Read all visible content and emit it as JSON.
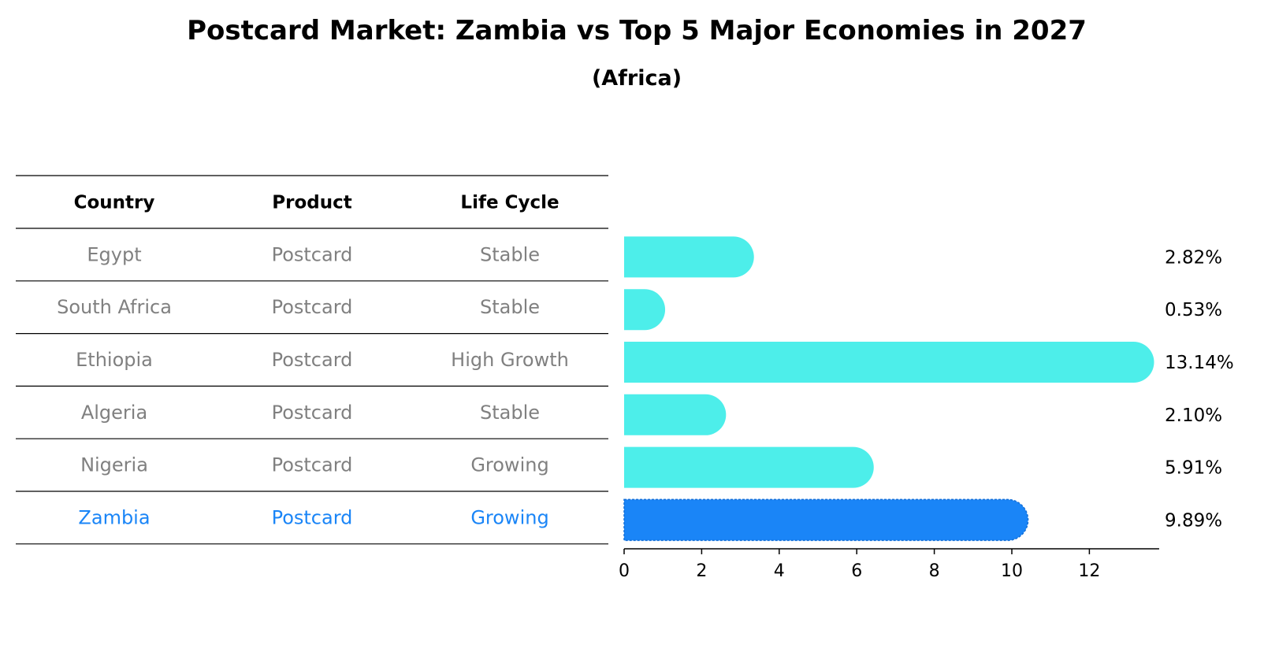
{
  "colors": {
    "bar": "#4DEEEA",
    "highlight_bar": "#1A85F7",
    "row_text": "#808080",
    "highlight_text": "#1A85F7"
  },
  "table": {
    "headers": [
      "Country",
      "Product",
      "Life Cycle"
    ],
    "rows": [
      {
        "country": "Egypt",
        "product": "Postcard",
        "life_cycle": "Stable"
      },
      {
        "country": "South Africa",
        "product": "Postcard",
        "life_cycle": "Stable"
      },
      {
        "country": "Ethiopia",
        "product": "Postcard",
        "life_cycle": "High Growth"
      },
      {
        "country": "Algeria",
        "product": "Postcard",
        "life_cycle": "Stable"
      },
      {
        "country": "Nigeria",
        "product": "Postcard",
        "life_cycle": "Growing"
      },
      {
        "country": "Zambia",
        "product": "Postcard",
        "life_cycle": "Growing"
      }
    ],
    "highlight_row": 5
  },
  "chart_data": {
    "type": "bar",
    "orientation": "horizontal",
    "title": "Postcard Market: Zambia vs Top 5 Major Economies in 2027",
    "subtitle": "(Africa)",
    "categories": [
      "Egypt",
      "South Africa",
      "Ethiopia",
      "Algeria",
      "Nigeria",
      "Zambia"
    ],
    "values": [
      2.82,
      0.53,
      13.14,
      2.1,
      5.91,
      9.89
    ],
    "value_labels": [
      "2.82%",
      "0.53%",
      "13.14%",
      "2.10%",
      "5.91%",
      "9.89%"
    ],
    "highlight": "Zambia",
    "xlim": [
      0,
      13.8
    ],
    "xticks": [
      0,
      2,
      4,
      6,
      8,
      10,
      12
    ],
    "xlabel": "",
    "ylabel": "",
    "grid": false,
    "legend": "none"
  }
}
